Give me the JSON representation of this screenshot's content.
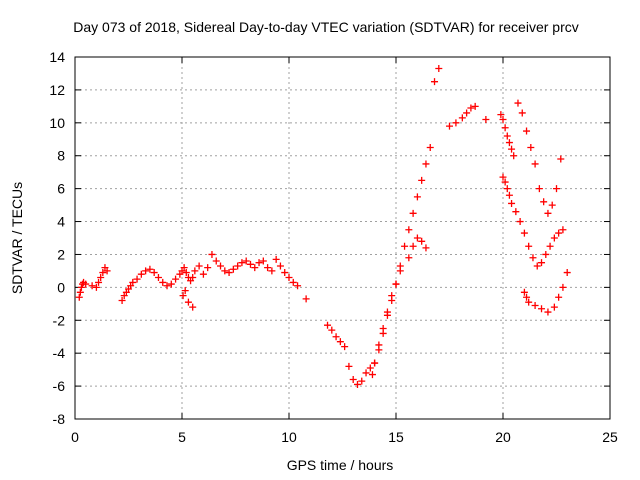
{
  "chart_data": {
    "type": "scatter",
    "title": "Day 073 of 2018, Sidereal Day-to-day VTEC variation (SDTVAR) for receiver prcv",
    "xlabel": "GPS time / hours",
    "ylabel": "SDTVAR / TECUs",
    "xlim": [
      0,
      25
    ],
    "ylim": [
      -8,
      14
    ],
    "xticks": [
      0,
      5,
      10,
      15,
      20,
      25
    ],
    "yticks": [
      -8,
      -6,
      -4,
      -2,
      0,
      2,
      4,
      6,
      8,
      10,
      12,
      14
    ],
    "grid": true,
    "marker": "+",
    "marker_color": "#ff0000",
    "series": [
      {
        "name": "SDTVAR",
        "x": [
          0.2,
          0.25,
          0.3,
          0.35,
          0.4,
          0.5,
          0.8,
          1.0,
          1.1,
          1.2,
          1.3,
          1.4,
          1.5,
          2.2,
          2.3,
          2.4,
          2.5,
          2.6,
          2.7,
          2.9,
          3.1,
          3.3,
          3.5,
          3.7,
          3.9,
          4.1,
          4.3,
          4.5,
          4.7,
          4.9,
          5.0,
          5.1,
          5.2,
          5.3,
          5.4,
          5.5,
          5.6,
          5.8,
          6.0,
          6.2,
          6.4,
          6.6,
          6.8,
          7.0,
          7.2,
          5.05,
          5.15,
          5.3,
          5.5,
          7.4,
          7.6,
          7.8,
          8.0,
          8.2,
          8.4,
          8.6,
          8.8,
          9.0,
          9.2,
          9.4,
          9.6,
          9.8,
          10.0,
          10.2,
          10.4,
          10.8,
          11.8,
          12.0,
          12.2,
          12.4,
          12.6,
          12.8,
          13.0,
          13.2,
          13.4,
          13.6,
          13.8,
          14.0,
          14.2,
          14.4,
          14.6,
          14.8,
          15.0,
          15.2,
          15.4,
          15.6,
          15.8,
          16.0,
          16.2,
          16.4,
          16.6,
          16.8,
          17.0,
          13.9,
          14.0,
          14.2,
          14.4,
          14.6,
          14.8,
          15.0,
          15.2,
          15.6,
          15.8,
          16.0,
          16.2,
          16.4,
          17.5,
          17.8,
          18.1,
          18.3,
          18.5,
          18.7,
          19.2,
          19.9,
          20.0,
          20.1,
          20.2,
          20.3,
          20.4,
          20.5,
          20.0,
          20.1,
          20.2,
          20.3,
          20.4,
          20.6,
          20.8,
          21.0,
          21.2,
          21.4,
          21.6,
          21.8,
          22.0,
          22.2,
          22.4,
          22.6,
          22.8,
          20.7,
          20.9,
          21.1,
          21.3,
          21.5,
          21.7,
          21.9,
          22.1,
          22.3,
          22.5,
          22.7,
          21.0,
          21.1,
          21.2,
          21.5,
          21.8,
          22.1,
          22.4,
          22.6,
          22.8,
          23.0
        ],
        "y": [
          -0.6,
          -0.3,
          0.0,
          0.2,
          0.3,
          0.2,
          0.1,
          0.0,
          0.3,
          0.6,
          0.9,
          1.2,
          1.0,
          -0.8,
          -0.5,
          -0.3,
          -0.1,
          0.1,
          0.3,
          0.5,
          0.8,
          1.0,
          1.1,
          0.9,
          0.6,
          0.3,
          0.1,
          0.2,
          0.5,
          0.8,
          1.0,
          1.2,
          0.9,
          0.6,
          0.4,
          0.6,
          1.0,
          1.3,
          0.8,
          1.2,
          2.0,
          1.6,
          1.3,
          1.0,
          0.9,
          -0.5,
          -0.2,
          -0.9,
          -1.2,
          1.1,
          1.3,
          1.5,
          1.6,
          1.4,
          1.2,
          1.5,
          1.6,
          1.2,
          1.0,
          1.7,
          1.3,
          0.9,
          0.6,
          0.3,
          0.1,
          -0.7,
          -2.3,
          -2.6,
          -3.0,
          -3.3,
          -3.6,
          -4.8,
          -5.6,
          -5.9,
          -5.7,
          -5.2,
          -4.9,
          -4.6,
          -3.8,
          -2.8,
          -1.7,
          -0.8,
          0.2,
          1.3,
          2.5,
          3.5,
          4.5,
          5.5,
          6.5,
          7.5,
          8.5,
          12.5,
          13.3,
          -5.3,
          -4.6,
          -3.5,
          -2.5,
          -1.5,
          -0.5,
          0.2,
          1.0,
          1.8,
          2.5,
          3.0,
          2.8,
          2.4,
          9.8,
          10.0,
          10.3,
          10.6,
          10.9,
          11.0,
          10.2,
          10.5,
          10.2,
          9.7,
          9.2,
          8.8,
          8.4,
          8.0,
          6.7,
          6.4,
          6.0,
          5.6,
          5.1,
          4.6,
          4.0,
          3.3,
          2.5,
          1.8,
          1.3,
          1.5,
          2.0,
          2.5,
          3.0,
          3.3,
          3.5,
          11.2,
          10.6,
          9.5,
          8.5,
          7.5,
          6.0,
          5.2,
          4.5,
          5.0,
          6.0,
          7.8,
          -0.3,
          -0.6,
          -0.9,
          -1.1,
          -1.3,
          -1.5,
          -1.2,
          -0.6,
          0.0,
          0.9
        ]
      }
    ]
  }
}
